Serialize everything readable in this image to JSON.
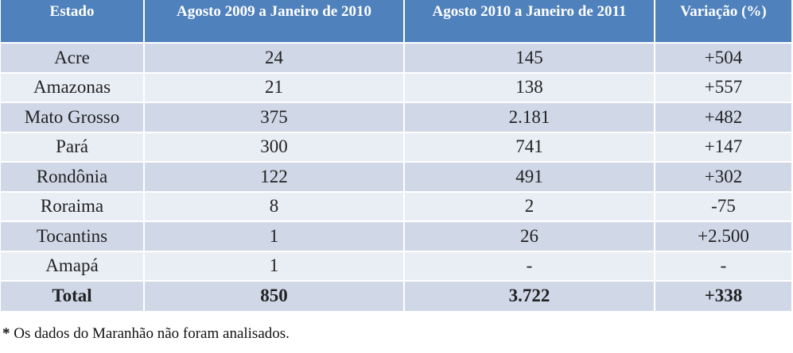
{
  "table": {
    "headers": [
      "Estado",
      "Agosto 2009 a Janeiro de 2010",
      "Agosto 2010 a Janeiro de 2011",
      "Variação (%)"
    ],
    "rows": [
      {
        "estado": "Acre",
        "periodo_2009_2010": "24",
        "periodo_2010_2011": "145",
        "variacao": "+504"
      },
      {
        "estado": "Amazonas",
        "periodo_2009_2010": "21",
        "periodo_2010_2011": "138",
        "variacao": "+557"
      },
      {
        "estado": "Mato Grosso",
        "periodo_2009_2010": "375",
        "periodo_2010_2011": "2.181",
        "variacao": "+482"
      },
      {
        "estado": "Pará",
        "periodo_2009_2010": "300",
        "periodo_2010_2011": "741",
        "variacao": "+147"
      },
      {
        "estado": "Rondônia",
        "periodo_2009_2010": "122",
        "periodo_2010_2011": "491",
        "variacao": "+302"
      },
      {
        "estado": "Roraima",
        "periodo_2009_2010": "8",
        "periodo_2010_2011": "2",
        "variacao": "-75"
      },
      {
        "estado": "Tocantins",
        "periodo_2009_2010": "1",
        "periodo_2010_2011": "26",
        "variacao": "+2.500"
      },
      {
        "estado": "Amapá",
        "periodo_2009_2010": "1",
        "periodo_2010_2011": "-",
        "variacao": "-"
      }
    ],
    "total": {
      "estado": "Total",
      "periodo_2009_2010": "850",
      "periodo_2010_2011": "3.722",
      "variacao": "+338"
    }
  },
  "footnote": {
    "marker": "*",
    "text": " Os dados do Maranhão não foram analisados."
  },
  "colors": {
    "header_bg": "#4f81bd",
    "header_text": "#ffffff",
    "row_odd_bg": "#d0d8e8",
    "row_even_bg": "#e9edf4"
  }
}
